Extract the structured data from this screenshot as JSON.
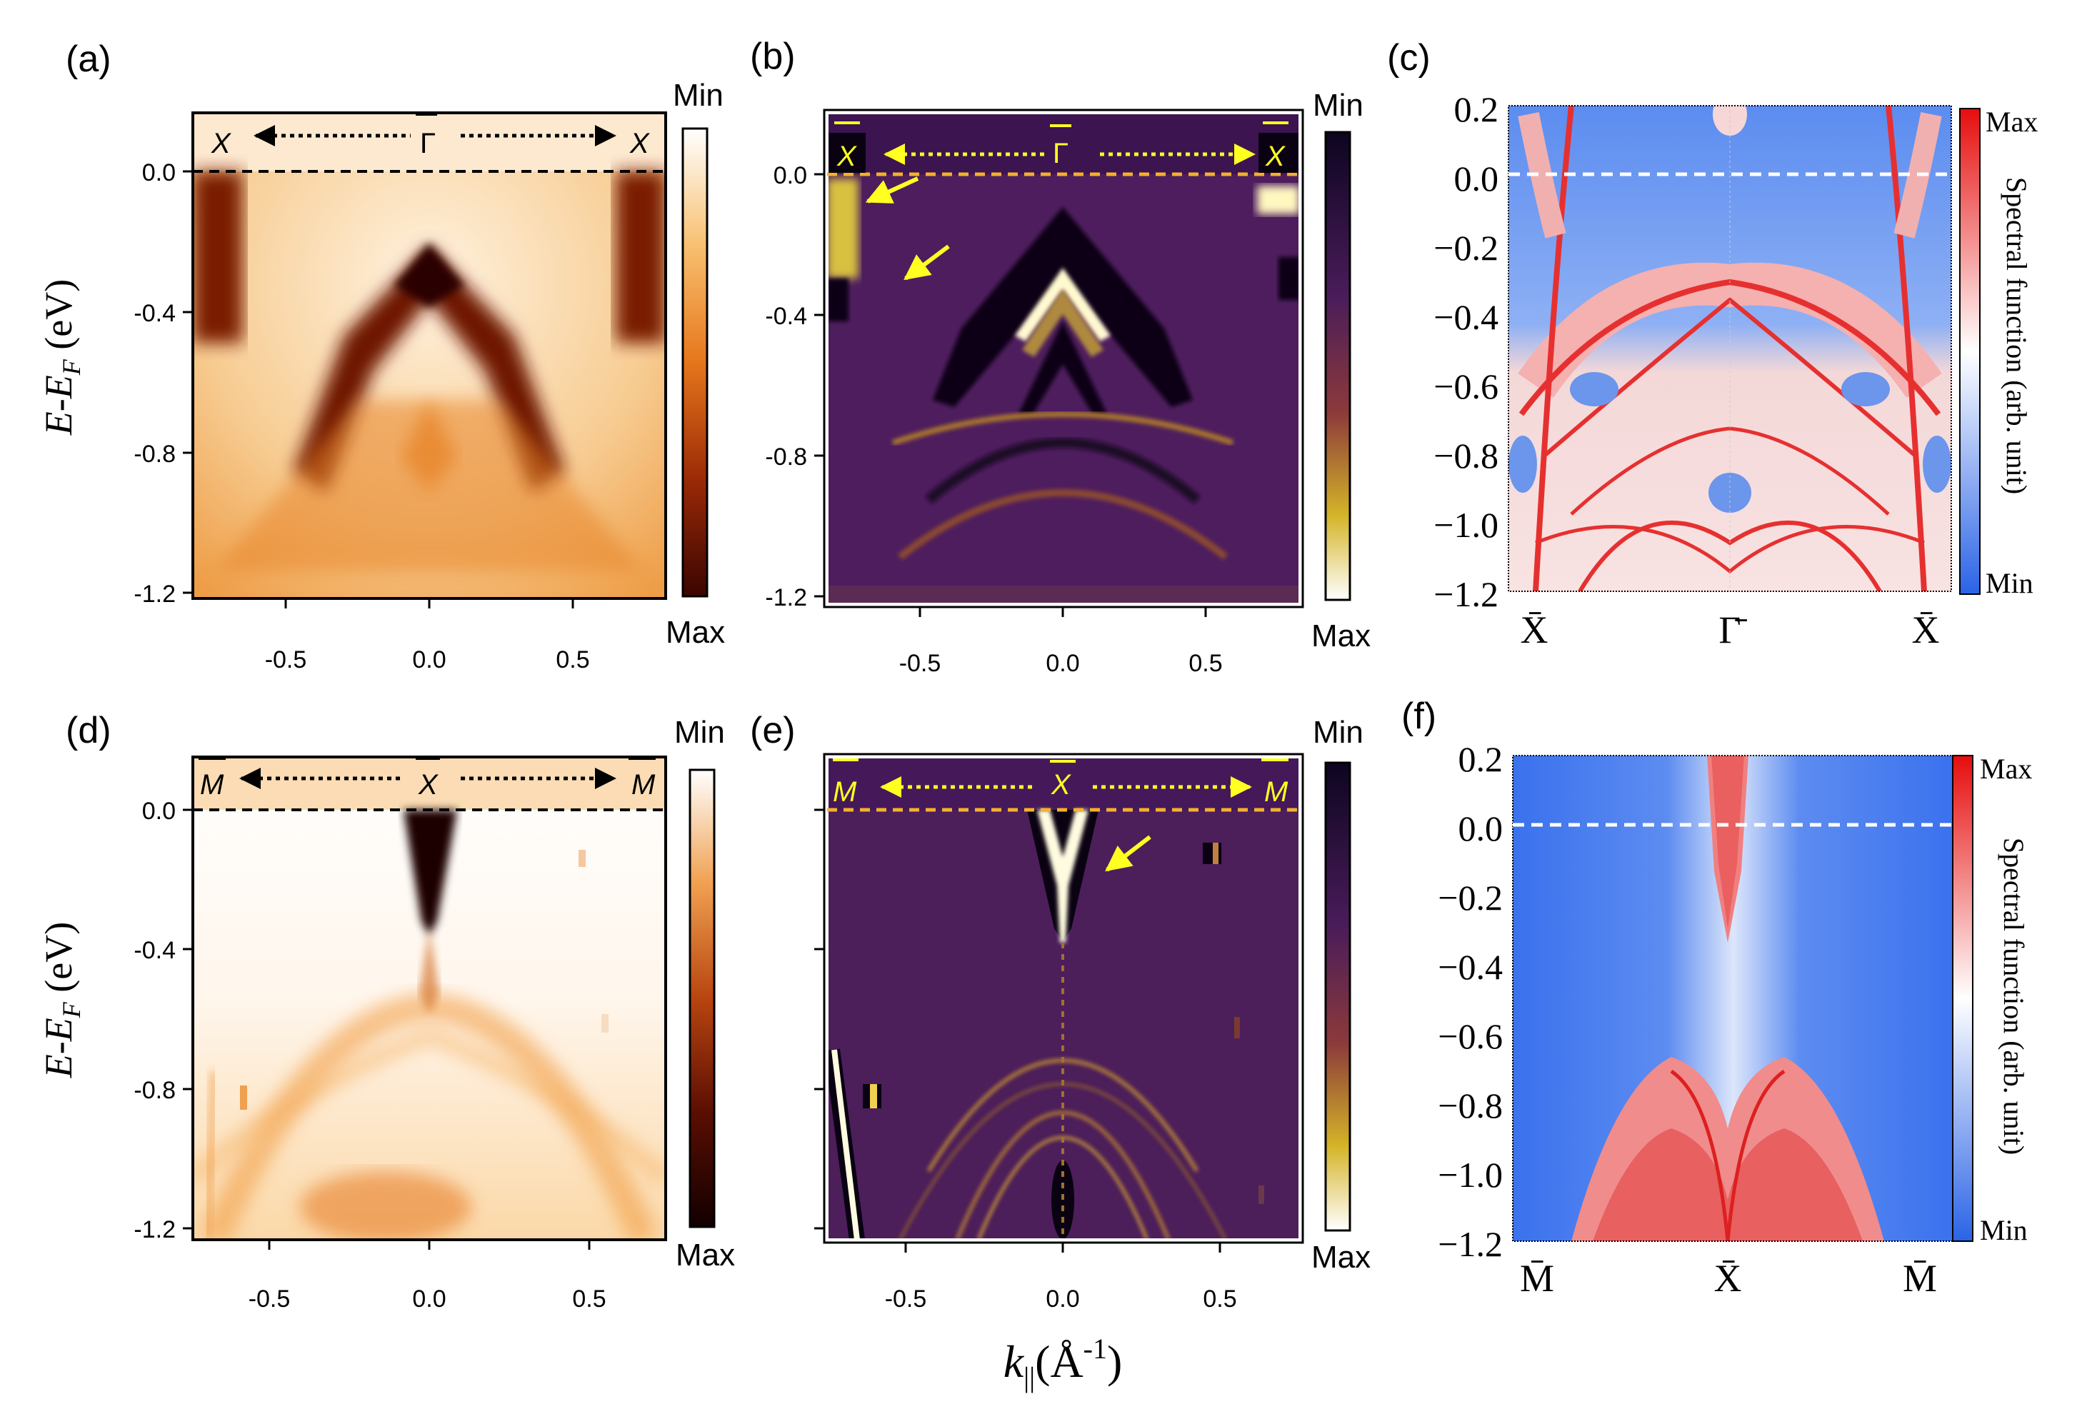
{
  "figure": {
    "shared_xlabel_main": "k",
    "shared_xlabel_sub": "||",
    "shared_xlabel_unit": "(Å",
    "shared_xlabel_sup": "-1",
    "shared_xlabel_close": ")"
  },
  "colors": {
    "arpes_orange": "#f28a1f",
    "arpes_dark": "#5a0f00",
    "curv_purple": "#4a1c5a",
    "curv_yellow": "#f2e640",
    "theory_red": "#e02525",
    "theory_blue": "#3b73e8",
    "marker_yellow": "#ffff22",
    "ef_line": "#000000"
  },
  "chart_data": [
    {
      "panel": "a",
      "type": "heatmap",
      "panel_label": "(a)",
      "ylabel_main": "E-E",
      "ylabel_sub": "F",
      "ylabel_unit": " (eV)",
      "xlim": [
        -0.82,
        0.82
      ],
      "ylim": [
        -1.22,
        0.2
      ],
      "xticks": [
        "-0.5",
        "0.0",
        "0.5"
      ],
      "yticks": [
        "0.0",
        "-0.4",
        "-0.8",
        "-1.2"
      ],
      "colorbar": {
        "top": "Min",
        "bottom": "Max"
      },
      "path_left": "X",
      "path_center": "Γ",
      "path_right": "X",
      "fermi_level": 0.0,
      "band_apex_E": -0.24
    },
    {
      "panel": "b",
      "type": "heatmap",
      "panel_label": "(b)",
      "xlim": [
        -0.82,
        0.82
      ],
      "ylim": [
        -1.22,
        0.2
      ],
      "xticks": [
        "-0.5",
        "0.0",
        "0.5"
      ],
      "yticks": [
        "0.0",
        "-0.4",
        "-0.8",
        "-1.2"
      ],
      "colorbar": {
        "top": "Min",
        "bottom": "Max"
      },
      "path_left": "X",
      "path_center": "Γ",
      "path_right": "X",
      "fermi_level": 0.0
    },
    {
      "panel": "c",
      "type": "heatmap",
      "panel_label": "(c)",
      "ylim": [
        -1.2,
        0.2
      ],
      "yticks": [
        "0.2",
        "0.0",
        "−0.2",
        "−0.4",
        "−0.6",
        "−0.8",
        "−1.0",
        "−1.2"
      ],
      "xticks": [
        "X̄",
        "Γ̄",
        "X̄"
      ],
      "colorbar": {
        "top": "Max",
        "bottom": "Min",
        "label": "Spectral function (arb. unit)"
      },
      "fermi_level": 0.0
    },
    {
      "panel": "d",
      "type": "heatmap",
      "panel_label": "(d)",
      "ylabel_main": "E-E",
      "ylabel_sub": "F",
      "ylabel_unit": " (eV)",
      "xlim": [
        -0.74,
        0.74
      ],
      "ylim": [
        -1.22,
        0.16
      ],
      "xticks": [
        "-0.5",
        "0.0",
        "0.5"
      ],
      "yticks": [
        "0.0",
        "-0.4",
        "-0.8",
        "-1.2"
      ],
      "colorbar": {
        "top": "Min",
        "bottom": "Max"
      },
      "path_left": "M",
      "path_center": "X",
      "path_right": "M",
      "fermi_level": 0.0,
      "dirac_point_E": -0.38
    },
    {
      "panel": "e",
      "type": "heatmap",
      "panel_label": "(e)",
      "xlim": [
        -0.74,
        0.74
      ],
      "ylim": [
        -1.22,
        0.16
      ],
      "xticks": [
        "-0.5",
        "0.0",
        "0.5"
      ],
      "colorbar": {
        "top": "Min",
        "bottom": "Max"
      },
      "path_left": "M",
      "path_center": "X",
      "path_right": "M",
      "fermi_level": 0.0
    },
    {
      "panel": "f",
      "type": "heatmap",
      "panel_label": "(f)",
      "ylim": [
        -1.2,
        0.2
      ],
      "yticks": [
        "0.2",
        "0.0",
        "−0.2",
        "−0.4",
        "−0.6",
        "−0.8",
        "−1.0",
        "−1.2"
      ],
      "xticks": [
        "M̄",
        "X̄",
        "M̄"
      ],
      "colorbar": {
        "top": "Max",
        "bottom": "Min",
        "label": "Spectral function (arb. unit)"
      },
      "fermi_level": 0.0,
      "gap_E": [
        -0.38,
        -0.68
      ]
    }
  ]
}
